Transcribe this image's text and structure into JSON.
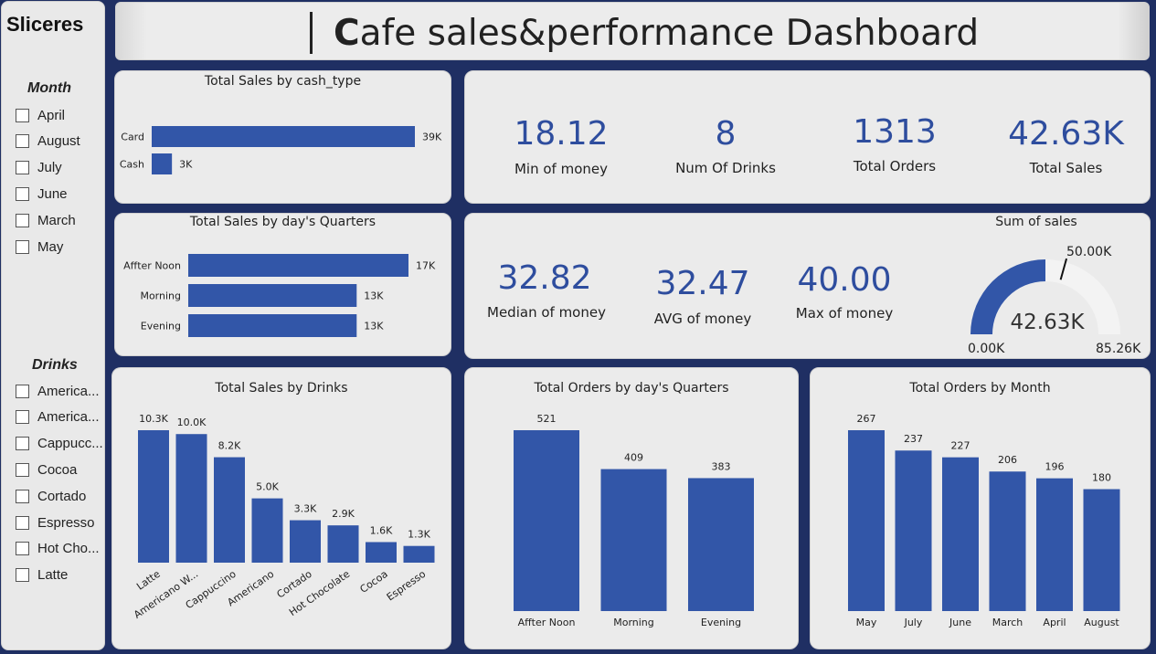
{
  "slicers": {
    "title": "Sliceres",
    "month_title": "Month",
    "months": [
      "April",
      "August",
      "July",
      "June",
      "March",
      "May"
    ],
    "drinks_title": "Drinks",
    "drinks": [
      "America...",
      "America...",
      "Cappucc...",
      "Cocoa",
      "Cortado",
      "Espresso",
      "Hot Cho...",
      "Latte"
    ]
  },
  "header": {
    "title_first": "C",
    "title_rest": "afe sales&performance Dashboard"
  },
  "kpis": {
    "min_money": {
      "value": "18.12",
      "label": "Min of money"
    },
    "num_drinks": {
      "value": "8",
      "label": "Num Of Drinks"
    },
    "total_orders": {
      "value": "1313",
      "label": "Total Orders"
    },
    "total_sales": {
      "value": "42.63K",
      "label": "Total Sales"
    },
    "median_money": {
      "value": "32.82",
      "label": "Median of money"
    },
    "avg_money": {
      "value": "32.47",
      "label": "AVG of money"
    },
    "max_money": {
      "value": "40.00",
      "label": "Max of money"
    }
  },
  "gauge": {
    "title": "Sum of sales",
    "value": 42.63,
    "value_label": "42.63K",
    "min_label": "0.00K",
    "max_label": "85.26K",
    "target_label": "50.00K",
    "min": 0,
    "max": 85.26,
    "target": 50
  },
  "colors": {
    "bar": "#3256a8",
    "accent": "#2e4d9e"
  },
  "chart_data": [
    {
      "type": "bar",
      "orientation": "horizontal",
      "title": "Total Sales by cash_type",
      "categories": [
        "Card",
        "Cash"
      ],
      "values": [
        39000,
        3000
      ],
      "labels": [
        "39K",
        "3K"
      ]
    },
    {
      "type": "bar",
      "orientation": "horizontal",
      "title": "Total Sales by day's Quarters",
      "categories": [
        "Affter Noon",
        "Morning",
        "Evening"
      ],
      "values": [
        17000,
        13000,
        13000
      ],
      "labels": [
        "17K",
        "13K",
        "13K"
      ]
    },
    {
      "type": "bar",
      "title": "Total Sales by Drinks",
      "categories": [
        "Latte",
        "Americano W...",
        "Cappuccino",
        "Americano",
        "Cortado",
        "Hot Chocolate",
        "Cocoa",
        "Espresso"
      ],
      "values": [
        10300,
        10000,
        8200,
        5000,
        3300,
        2900,
        1600,
        1300
      ],
      "labels": [
        "10.3K",
        "10.0K",
        "8.2K",
        "5.0K",
        "3.3K",
        "2.9K",
        "1.6K",
        "1.3K"
      ]
    },
    {
      "type": "bar",
      "title": "Total Orders by day's Quarters",
      "categories": [
        "Affter Noon",
        "Morning",
        "Evening"
      ],
      "values": [
        521,
        409,
        383
      ],
      "labels": [
        "521",
        "409",
        "383"
      ]
    },
    {
      "type": "bar",
      "title": "Total Orders by Month",
      "categories": [
        "May",
        "July",
        "June",
        "March",
        "April",
        "August"
      ],
      "values": [
        267,
        237,
        227,
        206,
        196,
        180
      ],
      "labels": [
        "267",
        "237",
        "227",
        "206",
        "196",
        "180"
      ]
    }
  ]
}
